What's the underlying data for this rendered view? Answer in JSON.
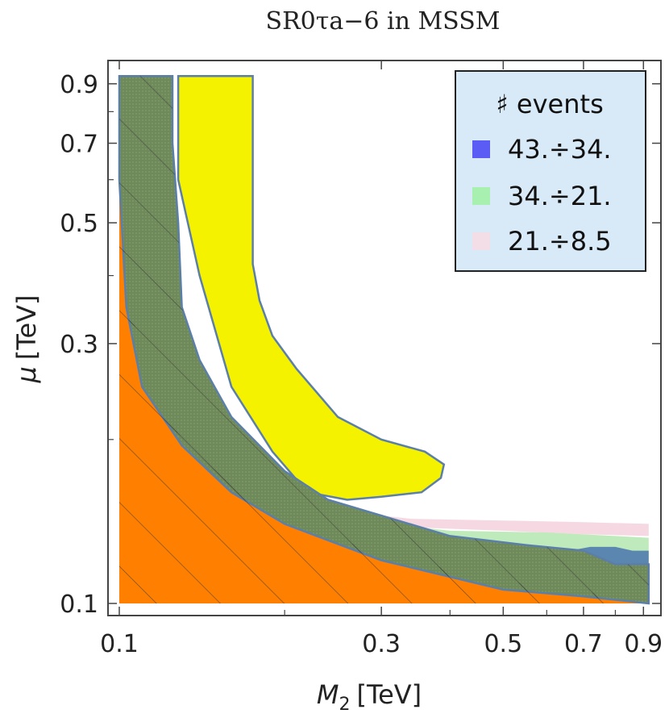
{
  "chart_data": {
    "type": "area",
    "title": "SR0τa−6 in MSSM",
    "xlabel_symbol": "M",
    "xlabel_sub": "2",
    "xlabel_unit": "[TeV]",
    "ylabel_symbol": "μ",
    "ylabel_unit": "[TeV]",
    "x_scale": "log",
    "y_scale": "log",
    "xlim": [
      0.1,
      0.93
    ],
    "ylim": [
      0.1,
      0.95
    ],
    "x_ticks": [
      {
        "value": 0.1,
        "label": "0.1"
      },
      {
        "value": 0.3,
        "label": "0.3"
      },
      {
        "value": 0.5,
        "label": "0.5"
      },
      {
        "value": 0.7,
        "label": "0.7"
      },
      {
        "value": 0.9,
        "label": "0.9"
      }
    ],
    "y_ticks": [
      {
        "value": 0.1,
        "label": "0.1"
      },
      {
        "value": 0.3,
        "label": "0.3"
      },
      {
        "value": 0.5,
        "label": "0.5"
      },
      {
        "value": 0.7,
        "label": "0.7"
      },
      {
        "value": 0.9,
        "label": "0.9"
      }
    ],
    "legend": {
      "title": "♯ events",
      "position": "top-right",
      "entries": [
        {
          "label": "43.÷34.",
          "color": "#5b5bf5"
        },
        {
          "label": "34.÷21.",
          "color": "#a8f0b0"
        },
        {
          "label": "21.÷8.5",
          "color": "#f3dde6"
        }
      ]
    },
    "regions": [
      {
        "id": "pink-band",
        "fill": "#f5d8e2",
        "points": [
          [
            0.25,
            0.148
          ],
          [
            0.34,
            0.143
          ],
          [
            0.5,
            0.142
          ],
          [
            0.7,
            0.141
          ],
          [
            0.92,
            0.14
          ],
          [
            0.92,
            0.133
          ],
          [
            0.7,
            0.134
          ],
          [
            0.5,
            0.136
          ],
          [
            0.34,
            0.138
          ],
          [
            0.26,
            0.14
          ]
        ]
      },
      {
        "id": "green-band",
        "fill": "#bfeabb",
        "points": [
          [
            0.27,
            0.142
          ],
          [
            0.4,
            0.136
          ],
          [
            0.6,
            0.135
          ],
          [
            0.8,
            0.133
          ],
          [
            0.92,
            0.132
          ],
          [
            0.92,
            0.12
          ],
          [
            0.7,
            0.122
          ],
          [
            0.5,
            0.128
          ],
          [
            0.35,
            0.13
          ]
        ]
      },
      {
        "id": "blue-patch",
        "fill": "#5a86b0",
        "points": [
          [
            0.66,
            0.125
          ],
          [
            0.72,
            0.127
          ],
          [
            0.8,
            0.127
          ],
          [
            0.86,
            0.125
          ],
          [
            0.92,
            0.125
          ],
          [
            0.92,
            0.113
          ],
          [
            0.84,
            0.117
          ],
          [
            0.78,
            0.118
          ],
          [
            0.75,
            0.112
          ],
          [
            0.7,
            0.115
          ]
        ]
      },
      {
        "id": "yellow-region",
        "fill": "#f5f200",
        "points": [
          [
            0.128,
            0.93
          ],
          [
            0.175,
            0.93
          ],
          [
            0.175,
            0.42
          ],
          [
            0.18,
            0.36
          ],
          [
            0.19,
            0.31
          ],
          [
            0.21,
            0.27
          ],
          [
            0.25,
            0.22
          ],
          [
            0.3,
            0.2
          ],
          [
            0.36,
            0.19
          ],
          [
            0.39,
            0.18
          ],
          [
            0.385,
            0.17
          ],
          [
            0.355,
            0.16
          ],
          [
            0.3,
            0.157
          ],
          [
            0.26,
            0.155
          ],
          [
            0.22,
            0.16
          ],
          [
            0.19,
            0.19
          ],
          [
            0.16,
            0.25
          ],
          [
            0.14,
            0.4
          ],
          [
            0.128,
            0.6
          ]
        ]
      },
      {
        "id": "orange-region",
        "fill": "#ff7f00",
        "points": [
          [
            0.1,
            0.1
          ],
          [
            0.1,
            0.6
          ],
          [
            0.103,
            0.4
          ],
          [
            0.11,
            0.27
          ],
          [
            0.13,
            0.2
          ],
          [
            0.16,
            0.165
          ],
          [
            0.2,
            0.143
          ],
          [
            0.3,
            0.123
          ],
          [
            0.5,
            0.11
          ],
          [
            0.7,
            0.105
          ],
          [
            0.92,
            0.102
          ],
          [
            0.92,
            0.1
          ]
        ]
      },
      {
        "id": "excluded-region",
        "fill": "#6a8560",
        "points": [
          [
            0.1,
            0.93
          ],
          [
            0.125,
            0.93
          ],
          [
            0.125,
            0.7
          ],
          [
            0.128,
            0.5
          ],
          [
            0.13,
            0.35
          ],
          [
            0.14,
            0.28
          ],
          [
            0.16,
            0.22
          ],
          [
            0.2,
            0.175
          ],
          [
            0.24,
            0.155
          ],
          [
            0.3,
            0.145
          ],
          [
            0.4,
            0.133
          ],
          [
            0.55,
            0.128
          ],
          [
            0.7,
            0.125
          ],
          [
            0.8,
            0.118
          ],
          [
            0.92,
            0.118
          ],
          [
            0.92,
            0.1
          ],
          [
            0.7,
            0.103
          ],
          [
            0.5,
            0.106
          ],
          [
            0.3,
            0.12
          ],
          [
            0.2,
            0.14
          ],
          [
            0.16,
            0.16
          ],
          [
            0.13,
            0.195
          ],
          [
            0.11,
            0.25
          ],
          [
            0.103,
            0.35
          ],
          [
            0.1,
            0.6
          ]
        ]
      }
    ],
    "grid": false
  }
}
